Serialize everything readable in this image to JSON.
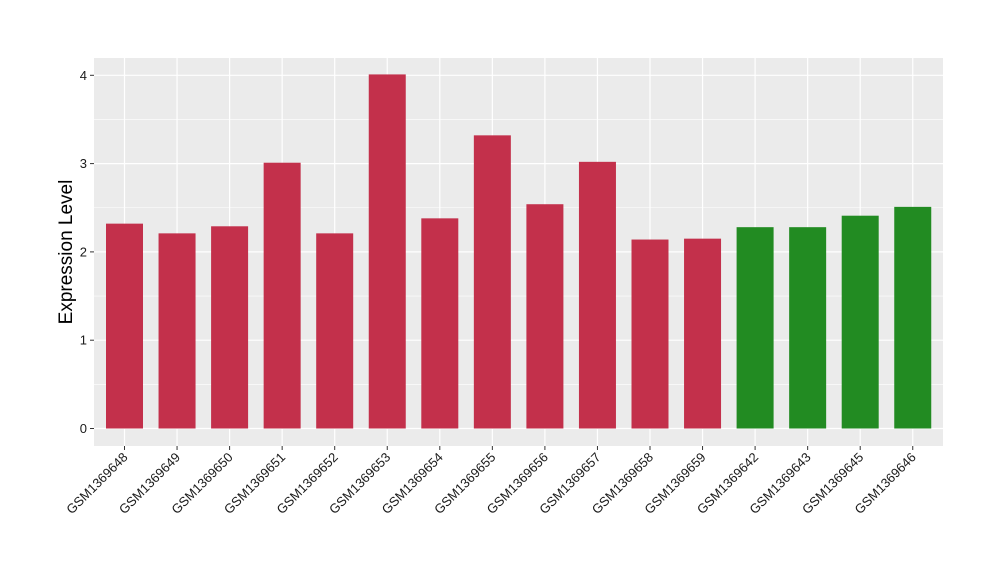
{
  "chart_data": {
    "type": "bar",
    "title": "",
    "xlabel": "",
    "ylabel": "Expression Level",
    "ylim": [
      0,
      4.18
    ],
    "yticks": [
      0,
      1,
      2,
      3,
      4
    ],
    "grid": true,
    "legend": "none",
    "background_color": "#EBEBEB",
    "grid_color": "#FFFFFF",
    "categories": [
      "GSM1369648",
      "GSM1369649",
      "GSM1369650",
      "GSM1369651",
      "GSM1369652",
      "GSM1369653",
      "GSM1369654",
      "GSM1369655",
      "GSM1369656",
      "GSM1369657",
      "GSM1369658",
      "GSM1369659",
      "GSM1369642",
      "GSM1369643",
      "GSM1369645",
      "GSM1369646"
    ],
    "values": [
      2.32,
      2.21,
      2.29,
      3.01,
      2.21,
      4.01,
      2.38,
      3.32,
      2.54,
      3.02,
      2.14,
      2.15,
      2.28,
      2.28,
      2.41,
      2.51
    ],
    "bar_colors": [
      "#C3304B",
      "#C3304B",
      "#C3304B",
      "#C3304B",
      "#C3304B",
      "#C3304B",
      "#C3304B",
      "#C3304B",
      "#C3304B",
      "#C3304B",
      "#C3304B",
      "#C3304B",
      "#228B22",
      "#228B22",
      "#228B22",
      "#228B22"
    ]
  }
}
